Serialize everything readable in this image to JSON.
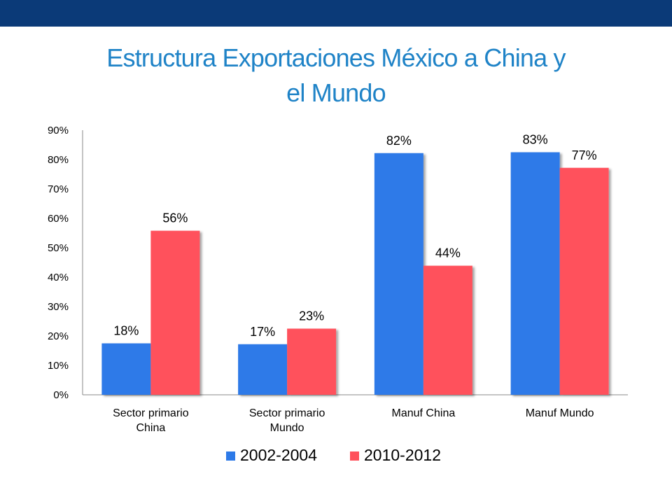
{
  "slide": {
    "title_line1": "Estructura Exportaciones México a China y",
    "title_line2": "el Mundo",
    "title_color": "#1F83C7",
    "top_bar_color": "#0B3A78"
  },
  "chart_data": {
    "type": "bar",
    "categories": [
      [
        "Sector primario",
        "China"
      ],
      [
        "Sector primario",
        "Mundo"
      ],
      [
        "Manuf China"
      ],
      [
        "Manuf Mundo"
      ]
    ],
    "series": [
      {
        "name": "2002-2004",
        "values": [
          17.5,
          17.2,
          82.2,
          82.5
        ],
        "labels": [
          "18%",
          "17%",
          "82%",
          "83%"
        ],
        "color": "#2D7AE8"
      },
      {
        "name": "2010-2012",
        "values": [
          55.8,
          22.5,
          43.9,
          77.2
        ],
        "labels": [
          "56%",
          "23%",
          "44%",
          "77%"
        ],
        "color": "#FF515B"
      }
    ],
    "y_ticks": [
      "0%",
      "10%",
      "20%",
      "30%",
      "40%",
      "50%",
      "60%",
      "70%",
      "80%",
      "90%"
    ],
    "ylim": [
      0,
      90
    ],
    "grid": false,
    "legend": "bottom"
  }
}
